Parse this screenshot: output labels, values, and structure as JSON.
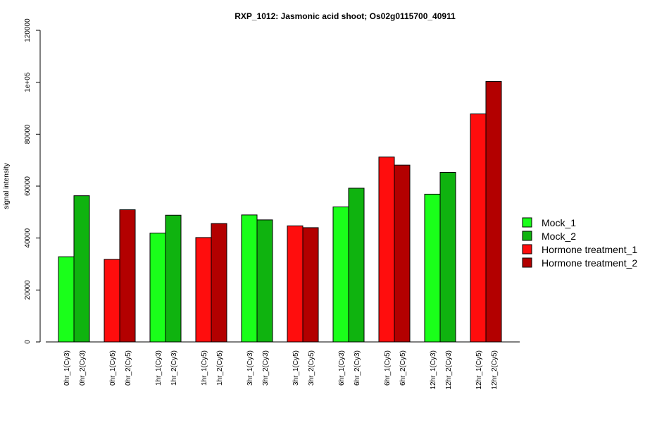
{
  "chart_data": {
    "type": "bar",
    "title": "RXP_1012: Jasmonic acid shoot; Os02g0115700_40911",
    "xlabel": "",
    "ylabel": "signal intensity",
    "ylim": [
      0,
      120000
    ],
    "yticks": [
      0,
      20000,
      40000,
      60000,
      80000,
      100000,
      120000
    ],
    "ytick_labels": [
      "0",
      "20000",
      "40000",
      "60000",
      "80000",
      "1e+05",
      "120000"
    ],
    "grid": false,
    "legend_position": "right",
    "legend": [
      {
        "name": "Mock_1",
        "color": "#1aff1a"
      },
      {
        "name": "Mock_2",
        "color": "#0fb30f"
      },
      {
        "name": "Hormone treatment_1",
        "color": "#ff0d0d"
      },
      {
        "name": "Hormone treatment_2",
        "color": "#b30000"
      }
    ],
    "groups": [
      {
        "bars": [
          {
            "label": "0hr_1(Cy3)",
            "value": 32800,
            "color": "#1aff1a"
          },
          {
            "label": "0hr_2(Cy3)",
            "value": 56300,
            "color": "#0fb30f"
          }
        ]
      },
      {
        "bars": [
          {
            "label": "0hr_1(Cy5)",
            "value": 31800,
            "color": "#ff0d0d"
          },
          {
            "label": "0hr_2(Cy5)",
            "value": 50900,
            "color": "#b30000"
          }
        ]
      },
      {
        "bars": [
          {
            "label": "1hr_1(Cy3)",
            "value": 41900,
            "color": "#1aff1a"
          },
          {
            "label": "1hr_2(Cy3)",
            "value": 48800,
            "color": "#0fb30f"
          }
        ]
      },
      {
        "bars": [
          {
            "label": "1hr_1(Cy5)",
            "value": 40200,
            "color": "#ff0d0d"
          },
          {
            "label": "1hr_2(Cy5)",
            "value": 45600,
            "color": "#b30000"
          }
        ]
      },
      {
        "bars": [
          {
            "label": "3hr_1(Cy3)",
            "value": 48900,
            "color": "#1aff1a"
          },
          {
            "label": "3hr_2(Cy3)",
            "value": 47000,
            "color": "#0fb30f"
          }
        ]
      },
      {
        "bars": [
          {
            "label": "3hr_1(Cy5)",
            "value": 44700,
            "color": "#ff0d0d"
          },
          {
            "label": "3hr_2(Cy5)",
            "value": 44000,
            "color": "#b30000"
          }
        ]
      },
      {
        "bars": [
          {
            "label": "6hr_1(Cy3)",
            "value": 52000,
            "color": "#1aff1a"
          },
          {
            "label": "6hr_2(Cy3)",
            "value": 59200,
            "color": "#0fb30f"
          }
        ]
      },
      {
        "bars": [
          {
            "label": "6hr_1(Cy5)",
            "value": 71200,
            "color": "#ff0d0d"
          },
          {
            "label": "6hr_2(Cy5)",
            "value": 68100,
            "color": "#b30000"
          }
        ]
      },
      {
        "bars": [
          {
            "label": "12hr_1(Cy3)",
            "value": 56900,
            "color": "#1aff1a"
          },
          {
            "label": "12hr_2(Cy3)",
            "value": 65300,
            "color": "#0fb30f"
          }
        ]
      },
      {
        "bars": [
          {
            "label": "12hr_1(Cy5)",
            "value": 87800,
            "color": "#ff0d0d"
          },
          {
            "label": "12hr_2(Cy5)",
            "value": 100300,
            "color": "#b30000"
          }
        ]
      }
    ]
  }
}
